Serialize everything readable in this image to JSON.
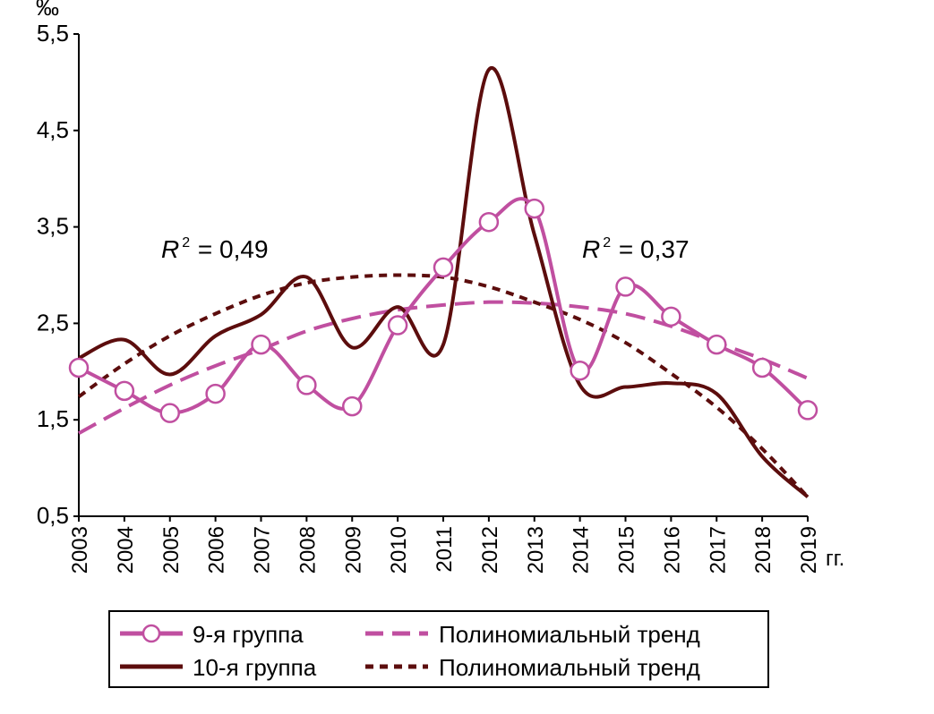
{
  "chart_data": {
    "type": "line",
    "unit_label": "‰",
    "x_suffix": "гг.",
    "x": [
      "2003",
      "2004",
      "2005",
      "2006",
      "2007",
      "2008",
      "2009",
      "2010",
      "2011",
      "2012",
      "2013",
      "2014",
      "2015",
      "2016",
      "2017",
      "2018",
      "2019"
    ],
    "ylim": [
      0.5,
      5.5
    ],
    "yticks": [
      0.5,
      1.5,
      2.5,
      3.5,
      4.5,
      5.5
    ],
    "ytick_labels": [
      "0,5",
      "1,5",
      "2,5",
      "3,5",
      "4,5",
      "5,5"
    ],
    "series": [
      {
        "name": "9-я группа",
        "style": "solid-markers",
        "color": "#c04fa0",
        "values": [
          2.04,
          1.8,
          1.57,
          1.77,
          2.28,
          1.86,
          1.64,
          2.48,
          3.08,
          3.55,
          3.69,
          2.01,
          2.88,
          2.57,
          2.28,
          2.04,
          1.6
        ]
      },
      {
        "name": "10-я группа",
        "style": "solid",
        "color": "#5c0d0d",
        "values": [
          2.14,
          2.33,
          1.97,
          2.37,
          2.59,
          2.98,
          2.25,
          2.67,
          2.28,
          5.13,
          3.42,
          1.86,
          1.84,
          1.88,
          1.77,
          1.12,
          0.7
        ]
      },
      {
        "name": "Полиномиальный тренд",
        "style": "long-dash",
        "color": "#c04fa0",
        "values": [
          1.36,
          1.62,
          1.86,
          2.06,
          2.23,
          2.42,
          2.55,
          2.64,
          2.69,
          2.72,
          2.71,
          2.67,
          2.6,
          2.47,
          2.3,
          2.13,
          1.93
        ]
      },
      {
        "name": "Полиномиальный тренд",
        "style": "short-dash",
        "color": "#5c0d0d",
        "values": [
          1.74,
          2.08,
          2.37,
          2.6,
          2.79,
          2.92,
          2.98,
          3.0,
          2.98,
          2.88,
          2.72,
          2.54,
          2.3,
          1.98,
          1.63,
          1.2,
          0.7
        ]
      }
    ],
    "annotations": [
      {
        "text_base": "R",
        "sup": "2",
        "text_rest": " = 0,49"
      },
      {
        "text_base": "R",
        "sup": "2",
        "text_rest": " = 0,37"
      }
    ],
    "legend_placement": "bottom"
  }
}
